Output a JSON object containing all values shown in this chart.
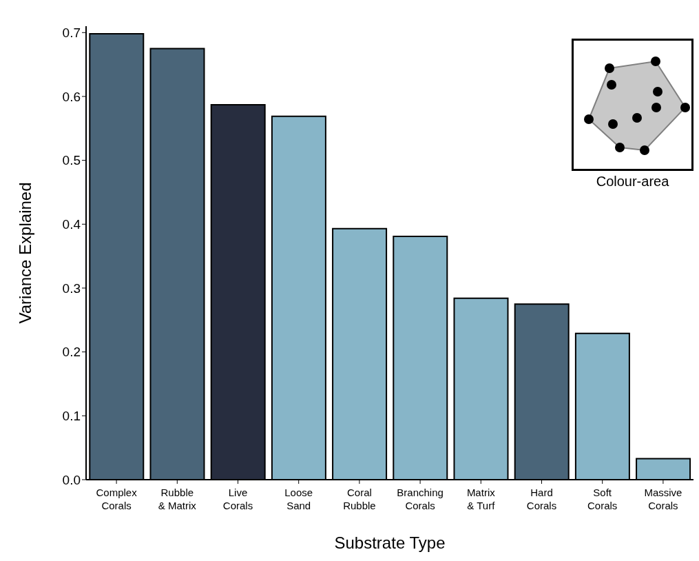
{
  "chart_data": {
    "type": "bar",
    "xlabel": "Substrate Type",
    "ylabel": "Variance Explained",
    "categories": [
      "Complex Corals",
      "Rubble & Matrix",
      "Live Corals",
      "Loose Sand",
      "Coral Rubble",
      "Branching Corals",
      "Matrix & Turf",
      "Hard Corals",
      "Soft Corals",
      "Massive Corals"
    ],
    "values": [
      0.698,
      0.675,
      0.587,
      0.569,
      0.393,
      0.381,
      0.284,
      0.275,
      0.229,
      0.033
    ],
    "colors": [
      "#4a6579",
      "#4a6579",
      "#272d3f",
      "#87b5c8",
      "#87b5c8",
      "#87b5c8",
      "#87b5c8",
      "#4a6579",
      "#87b5c8",
      "#87b5c8"
    ],
    "ylim": [
      0,
      0.71
    ],
    "yticks": [
      {
        "value": 0,
        "label": "0.0"
      },
      0.1,
      0.2,
      0.3,
      0.4,
      0.5,
      0.6,
      0.7
    ],
    "grid": false,
    "annotations": [
      "Colour-area"
    ]
  }
}
